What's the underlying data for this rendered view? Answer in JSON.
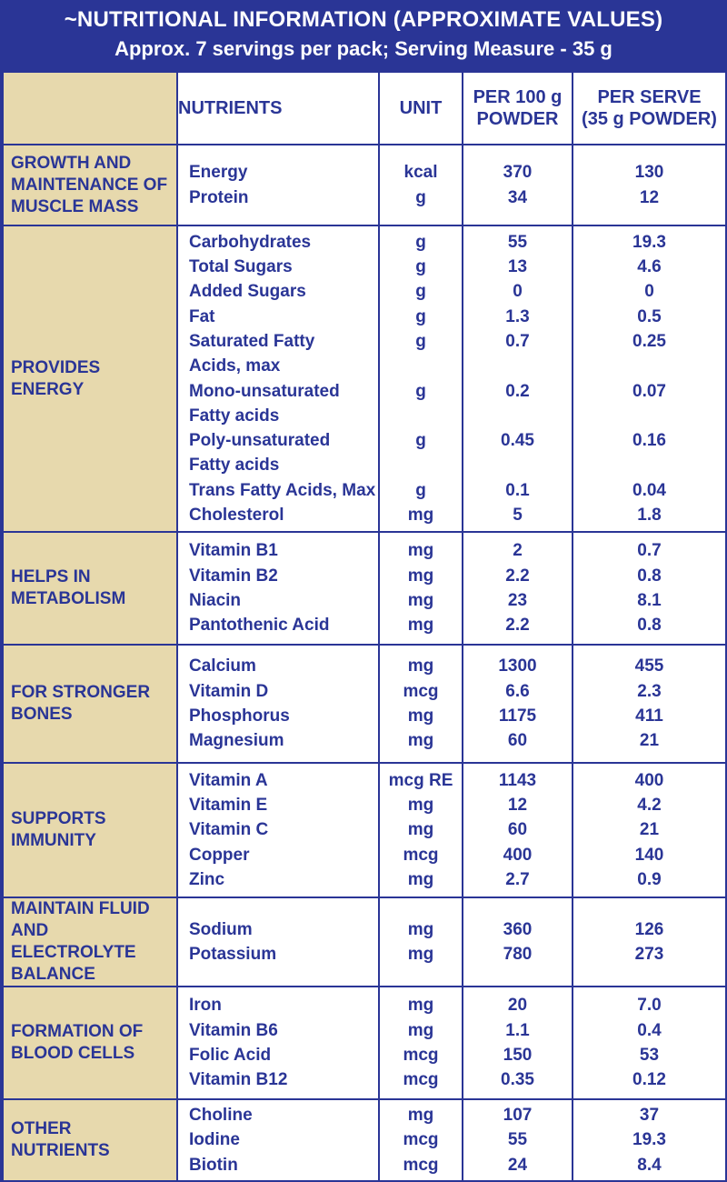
{
  "header": {
    "title": "~NUTRITIONAL INFORMATION (APPROXIMATE VALUES)",
    "subtitle": "Approx. 7 servings per pack; Serving Measure - 35 g"
  },
  "columns": {
    "nutrients": "NUTRIENTS",
    "unit": "UNIT",
    "per100_l1": "PER 100 g",
    "per100_l2": "POWDER",
    "perserve_l1": "PER SERVE",
    "perserve_l2": "(35 g POWDER)"
  },
  "groups": [
    {
      "category": [
        "GROWTH AND",
        "MAINTENANCE OF",
        "MUSCLE MASS"
      ],
      "rows": [
        {
          "name": "Energy",
          "unit": "kcal",
          "per100": "370",
          "perserve": "130"
        },
        {
          "name": "Protein",
          "unit": "g",
          "per100": "34",
          "perserve": "12"
        }
      ]
    },
    {
      "category": [
        "PROVIDES",
        "ENERGY"
      ],
      "rows": [
        {
          "name": "Carbohydrates",
          "unit": "g",
          "per100": "55",
          "perserve": "19.3"
        },
        {
          "name": "Total Sugars",
          "unit": "g",
          "per100": "13",
          "perserve": "4.6"
        },
        {
          "name": "Added Sugars",
          "unit": "g",
          "per100": "0",
          "perserve": "0"
        },
        {
          "name": "Fat",
          "unit": "g",
          "per100": "1.3",
          "perserve": "0.5"
        },
        {
          "name": "Saturated Fatty",
          "unit": "g",
          "per100": "0.7",
          "perserve": "0.25"
        },
        {
          "name": "Acids, max",
          "unit": "",
          "per100": "",
          "perserve": ""
        },
        {
          "name": "Mono-unsaturated",
          "unit": "g",
          "per100": "0.2",
          "perserve": "0.07"
        },
        {
          "name": "Fatty acids",
          "unit": "",
          "per100": "",
          "perserve": ""
        },
        {
          "name": "Poly-unsaturated",
          "unit": "g",
          "per100": "0.45",
          "perserve": "0.16"
        },
        {
          "name": "Fatty acids",
          "unit": "",
          "per100": "",
          "perserve": ""
        },
        {
          "name": "Trans Fatty Acids, Max",
          "unit": "g",
          "per100": "0.1",
          "perserve": "0.04"
        },
        {
          "name": "Cholesterol",
          "unit": "mg",
          "per100": "5",
          "perserve": "1.8"
        }
      ]
    },
    {
      "category": [
        "HELPS IN",
        "METABOLISM"
      ],
      "rows": [
        {
          "name": "Vitamin B1",
          "unit": "mg",
          "per100": "2",
          "perserve": "0.7"
        },
        {
          "name": "Vitamin B2",
          "unit": "mg",
          "per100": "2.2",
          "perserve": "0.8"
        },
        {
          "name": "Niacin",
          "unit": "mg",
          "per100": "23",
          "perserve": "8.1"
        },
        {
          "name": "Pantothenic Acid",
          "unit": "mg",
          "per100": "2.2",
          "perserve": "0.8"
        }
      ]
    },
    {
      "category": [
        "FOR STRONGER",
        "BONES"
      ],
      "rows": [
        {
          "name": "Calcium",
          "unit": "mg",
          "per100": "1300",
          "perserve": "455"
        },
        {
          "name": "Vitamin D",
          "unit": "mcg",
          "per100": "6.6",
          "perserve": "2.3"
        },
        {
          "name": "Phosphorus",
          "unit": "mg",
          "per100": "1175",
          "perserve": "411"
        },
        {
          "name": "Magnesium",
          "unit": "mg",
          "per100": "60",
          "perserve": "21"
        }
      ]
    },
    {
      "category": [
        "SUPPORTS",
        "IMMUNITY"
      ],
      "rows": [
        {
          "name": "Vitamin A",
          "unit": "mcg RE",
          "per100": "1143",
          "perserve": "400"
        },
        {
          "name": "Vitamin E",
          "unit": "mg",
          "per100": "12",
          "perserve": "4.2"
        },
        {
          "name": "Vitamin C",
          "unit": "mg",
          "per100": "60",
          "perserve": "21"
        },
        {
          "name": "Copper",
          "unit": "mcg",
          "per100": "400",
          "perserve": "140"
        },
        {
          "name": "Zinc",
          "unit": "mg",
          "per100": "2.7",
          "perserve": "0.9"
        }
      ]
    },
    {
      "category": [
        "MAINTAIN FLUID",
        "AND ELECTROLYTE",
        "BALANCE"
      ],
      "rows": [
        {
          "name": "Sodium",
          "unit": "mg",
          "per100": "360",
          "perserve": "126"
        },
        {
          "name": "Potassium",
          "unit": "mg",
          "per100": "780",
          "perserve": "273"
        }
      ]
    },
    {
      "category": [
        "FORMATION OF",
        "BLOOD CELLS"
      ],
      "rows": [
        {
          "name": "Iron",
          "unit": "mg",
          "per100": "20",
          "perserve": "7.0"
        },
        {
          "name": "Vitamin B6",
          "unit": "mg",
          "per100": "1.1",
          "perserve": "0.4"
        },
        {
          "name": "Folic Acid",
          "unit": "mcg",
          "per100": "150",
          "perserve": "53"
        },
        {
          "name": "Vitamin B12",
          "unit": "mcg",
          "per100": "0.35",
          "perserve": "0.12"
        }
      ]
    },
    {
      "category": [
        "OTHER",
        "NUTRIENTS"
      ],
      "rows": [
        {
          "name": "Choline",
          "unit": "mg",
          "per100": "107",
          "perserve": "37"
        },
        {
          "name": "Iodine",
          "unit": "mcg",
          "per100": "55",
          "perserve": "19.3"
        },
        {
          "name": "Biotin",
          "unit": "mcg",
          "per100": "24",
          "perserve": "8.4"
        }
      ]
    }
  ]
}
